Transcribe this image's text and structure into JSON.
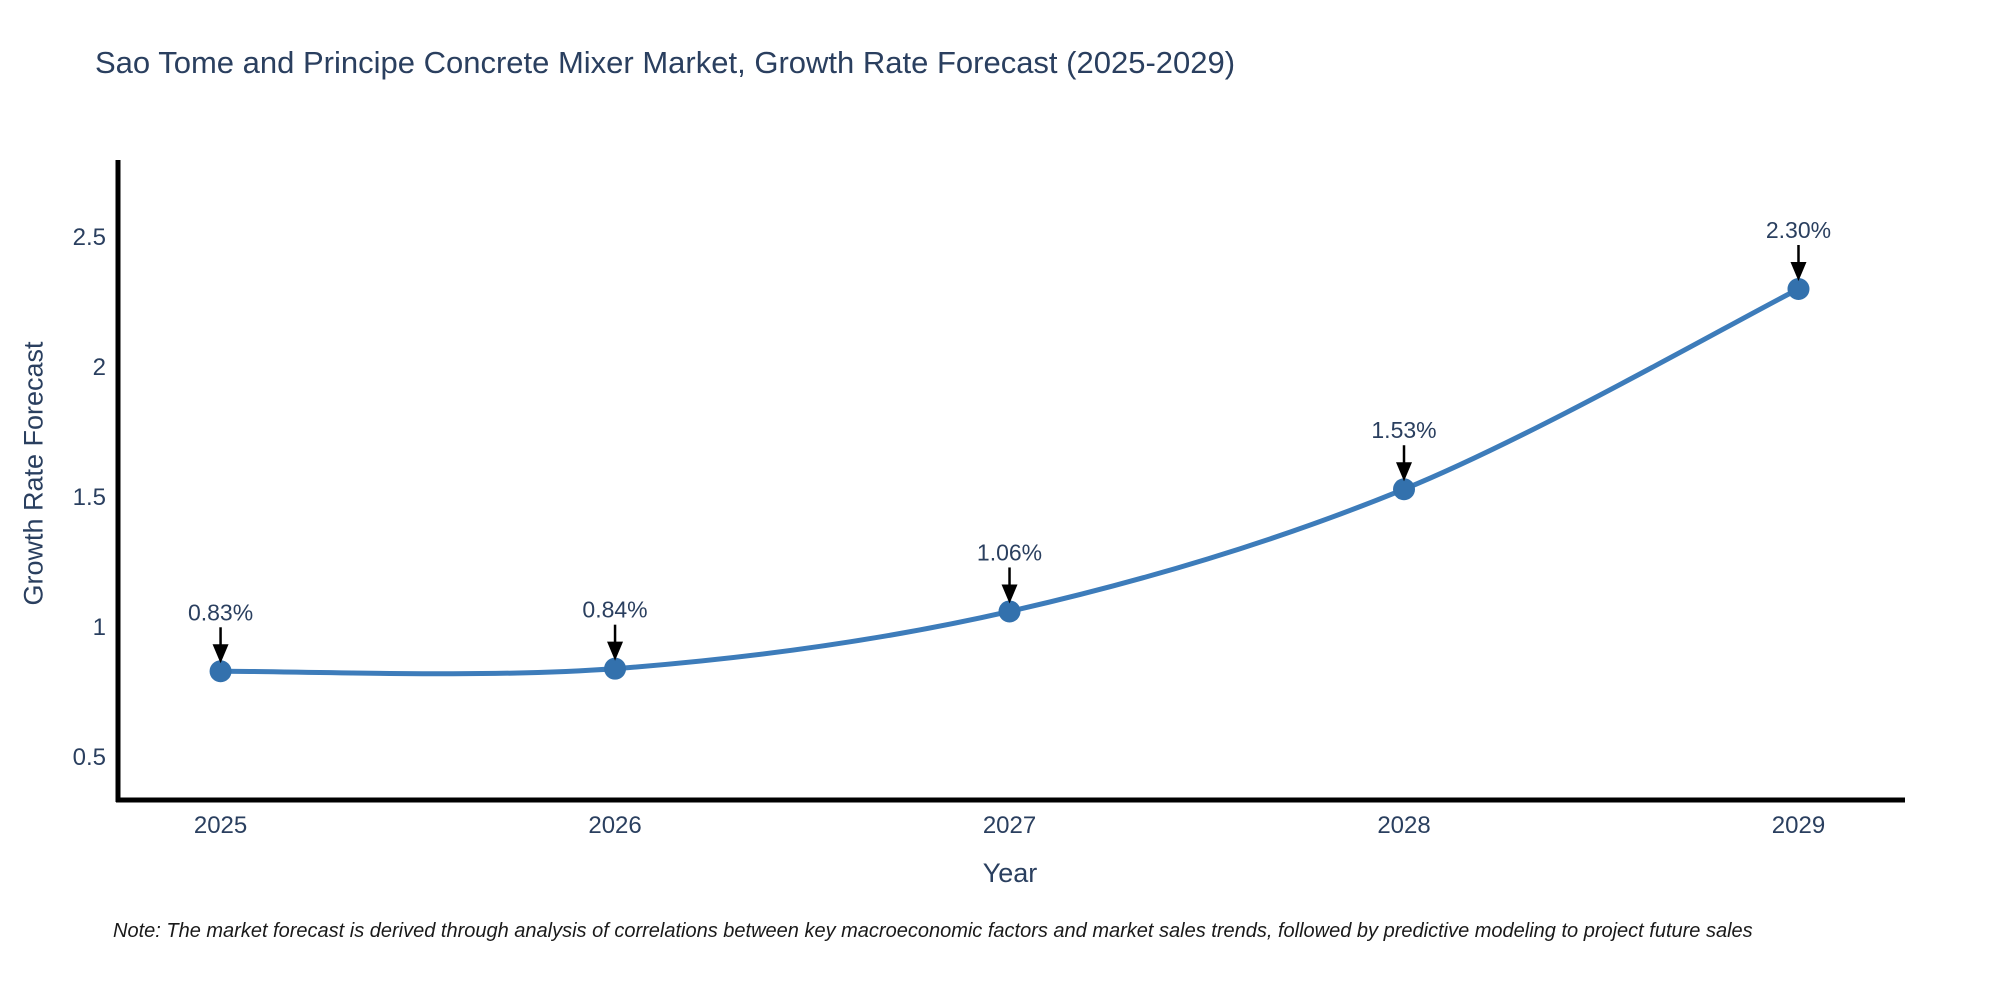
{
  "chart_data": {
    "type": "line",
    "title": "Sao Tome and Principe Concrete Mixer Market, Growth Rate Forecast (2025-2029)",
    "xlabel": "Year",
    "ylabel": "Growth Rate Forecast",
    "x": [
      2025,
      2026,
      2027,
      2028,
      2029
    ],
    "series": [
      {
        "name": "Growth Rate Forecast",
        "values": [
          0.83,
          0.84,
          1.06,
          1.53,
          2.3
        ],
        "point_labels": [
          "0.83%",
          "0.84%",
          "1.06%",
          "1.53%",
          "2.30%"
        ]
      }
    ],
    "x_tick_labels": [
      "2025",
      "2026",
      "2027",
      "2028",
      "2029"
    ],
    "y_ticks": [
      0.5,
      1,
      1.5,
      2,
      2.5
    ],
    "y_tick_labels": [
      "0.5",
      "1",
      "1.5",
      "2",
      "2.5"
    ],
    "xlim": [
      2024.74,
      2029.27
    ],
    "ylim": [
      0.335,
      2.796
    ],
    "grid": false,
    "legend_position": "none",
    "line_style": "spline",
    "colors": {
      "line": "#3d7cba",
      "marker": "#3371ad",
      "axis": "#000000",
      "tick_text": "#2a3f5f",
      "annotation_text": "#2a3f5f",
      "arrow": "#000000",
      "background": "#ffffff"
    }
  },
  "footnote": {
    "text": "Note: The market forecast is derived through analysis of correlations between key macroeconomic factors and market sales trends, followed by predictive modeling to project future sales"
  }
}
